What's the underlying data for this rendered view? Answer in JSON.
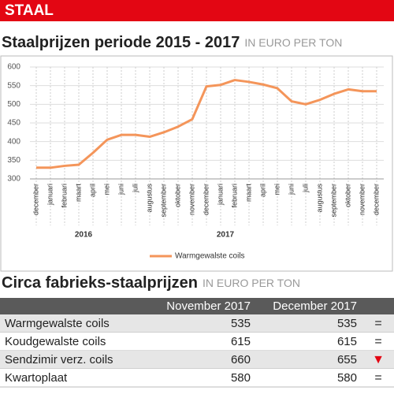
{
  "header": {
    "section": "STAAL"
  },
  "chart_data": {
    "type": "line",
    "title": "Staalprijzen periode 2015 - 2017",
    "unit": "IN EURO PER TON",
    "categories": [
      "december",
      "januari",
      "februari",
      "maart",
      "april",
      "mei",
      "juni",
      "juli",
      "augustus",
      "september",
      "oktober",
      "november",
      "december",
      "januari",
      "februari",
      "maart",
      "april",
      "mei",
      "juni",
      "juli",
      "augustus",
      "september",
      "oktober",
      "november",
      "december"
    ],
    "years": [
      "2016",
      "2017"
    ],
    "series": [
      {
        "name": "Warmgewalste coils",
        "color": "#f4955a",
        "values": [
          330,
          330,
          335,
          338,
          370,
          405,
          418,
          418,
          413,
          425,
          440,
          460,
          548,
          552,
          565,
          560,
          553,
          543,
          508,
          500,
          512,
          528,
          540,
          535,
          535
        ]
      }
    ],
    "ylim": [
      300,
      600
    ],
    "yticks": [
      300,
      350,
      400,
      450,
      500,
      550,
      600
    ],
    "grid": true
  },
  "table": {
    "title": "Circa fabrieks-staalprijzen",
    "unit": "IN EURO PER TON",
    "columns": [
      "November 2017",
      "December 2017"
    ],
    "rows": [
      [
        "Warmgewalste coils",
        535,
        535,
        "="
      ],
      [
        "Koudgewalste coils",
        615,
        615,
        "="
      ],
      [
        "Sendzimir verz. coils",
        660,
        655,
        "▼"
      ],
      [
        "Kwartoplaat",
        580,
        580,
        "="
      ]
    ]
  }
}
